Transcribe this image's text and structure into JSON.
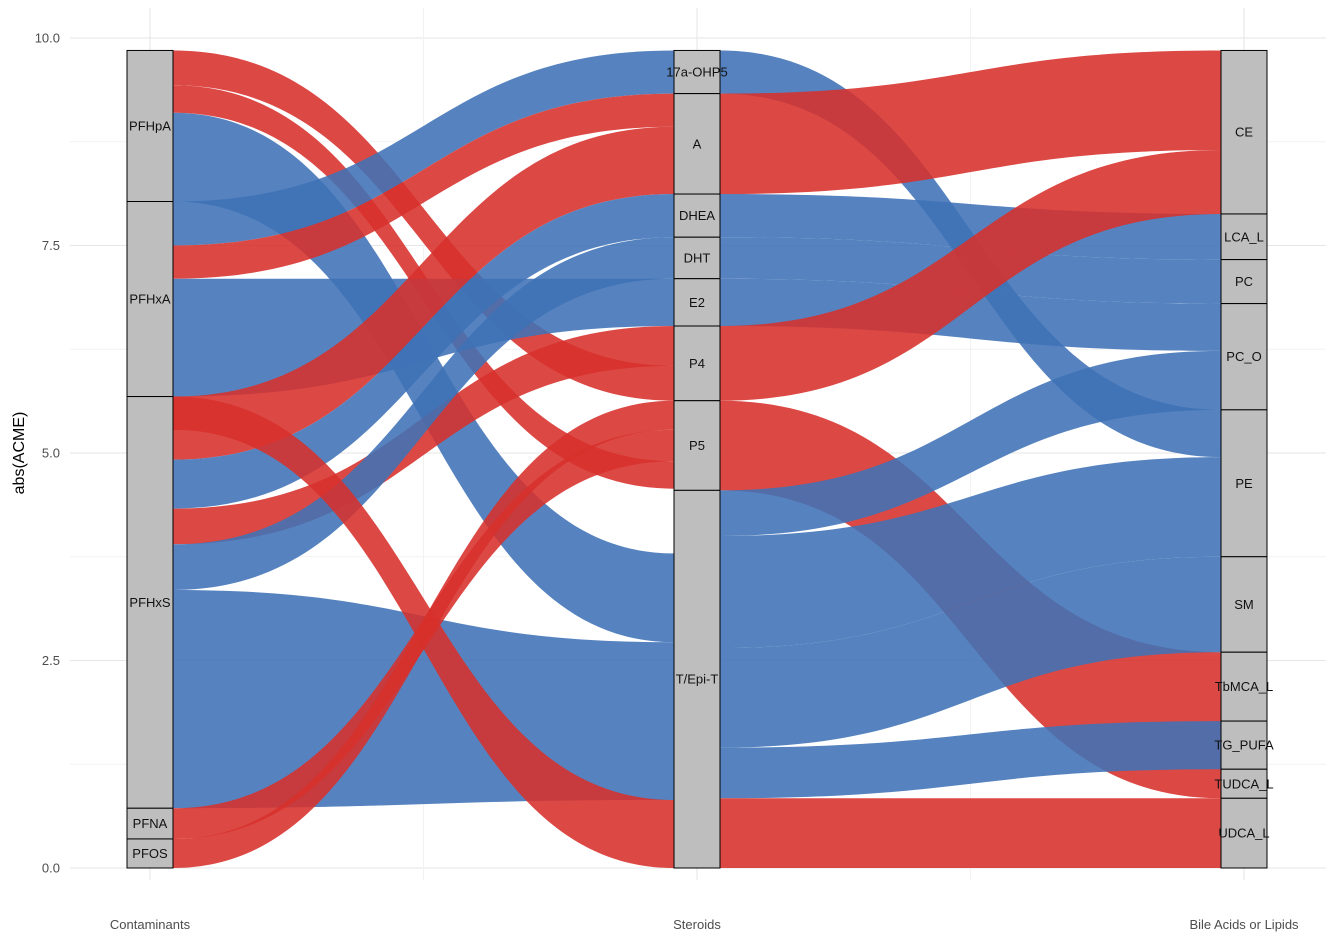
{
  "chart_data": {
    "type": "alluvial",
    "ylabel": "abs(ACME)",
    "ylim": [
      0,
      10
    ],
    "yticks": [
      "0.0",
      "2.5",
      "5.0",
      "7.5",
      "10.0"
    ],
    "ytick_values": [
      0,
      2.5,
      5,
      7.5,
      10
    ],
    "axes": [
      "Contaminants",
      "Steroids",
      "Bile Acids or Lipids"
    ],
    "colors": {
      "positive": "#d7302b",
      "negative": "#3f72b6",
      "node_fill": "#bebebe"
    },
    "nodes": {
      "Contaminants": [
        {
          "name": "PFHpA",
          "start": 8.03,
          "end": 9.85
        },
        {
          "name": "PFHxA",
          "start": 5.68,
          "end": 8.03
        },
        {
          "name": "PFHxS",
          "start": 0.72,
          "end": 5.68
        },
        {
          "name": "PFNA",
          "start": 0.35,
          "end": 0.72
        },
        {
          "name": "PFOS",
          "start": 0.0,
          "end": 0.35
        }
      ],
      "Steroids": [
        {
          "name": "17a-OHP5",
          "start": 9.33,
          "end": 9.85
        },
        {
          "name": "A",
          "start": 8.12,
          "end": 9.33
        },
        {
          "name": "DHEA",
          "start": 7.6,
          "end": 8.12
        },
        {
          "name": "DHT",
          "start": 7.1,
          "end": 7.6
        },
        {
          "name": "E2",
          "start": 6.53,
          "end": 7.1
        },
        {
          "name": "P4",
          "start": 5.63,
          "end": 6.53
        },
        {
          "name": "P5",
          "start": 4.55,
          "end": 5.63
        },
        {
          "name": "T/Epi-T",
          "start": 0.0,
          "end": 4.55
        }
      ],
      "Bile Acids or Lipids": [
        {
          "name": "CE",
          "start": 7.88,
          "end": 9.85
        },
        {
          "name": "LCA_L",
          "start": 7.33,
          "end": 7.88
        },
        {
          "name": "PC",
          "start": 6.8,
          "end": 7.33
        },
        {
          "name": "PC_O",
          "start": 5.52,
          "end": 6.8
        },
        {
          "name": "PE",
          "start": 3.75,
          "end": 5.52
        },
        {
          "name": "SM",
          "start": 2.6,
          "end": 3.75
        },
        {
          "name": "TbMCA_L",
          "start": 1.77,
          "end": 2.6
        },
        {
          "name": "TG_PUFA",
          "start": 1.19,
          "end": 1.77
        },
        {
          "name": "TUDCA_L",
          "start": 0.84,
          "end": 1.19
        },
        {
          "name": "UDCA_L",
          "start": 0.0,
          "end": 0.84
        }
      ]
    },
    "flows_left": [
      {
        "from": "PFHpA",
        "to": "P4",
        "sign": "positive",
        "l0": 9.43,
        "l1": 9.85,
        "r0": 5.63,
        "r1": 6.05
      },
      {
        "from": "PFHpA",
        "to": "P5",
        "sign": "positive",
        "l0": 9.1,
        "l1": 9.43,
        "r0": 4.57,
        "r1": 4.9
      },
      {
        "from": "PFHpA",
        "to": "T/Epi-T",
        "sign": "negative",
        "l0": 8.03,
        "l1": 9.1,
        "r0": 2.72,
        "r1": 3.79
      },
      {
        "from": "PFHxA",
        "to": "17a-OHP5",
        "sign": "negative",
        "l0": 7.5,
        "l1": 8.03,
        "r0": 9.33,
        "r1": 9.85
      },
      {
        "from": "PFHxA",
        "to": "A",
        "sign": "positive",
        "l0": 7.1,
        "l1": 7.5,
        "r0": 8.93,
        "r1": 9.33
      },
      {
        "from": "PFHxA",
        "to": "E2",
        "sign": "negative",
        "l0": 5.68,
        "l1": 7.1,
        "r0": 6.53,
        "r1": 7.1
      },
      {
        "from": "PFHxS",
        "to": "A",
        "sign": "positive",
        "l0": 4.92,
        "l1": 5.68,
        "r0": 8.12,
        "r1": 8.93
      },
      {
        "from": "PFHxS",
        "to": "DHEA",
        "sign": "negative",
        "l0": 4.33,
        "l1": 4.92,
        "r0": 7.6,
        "r1": 8.12
      },
      {
        "from": "PFHxS",
        "to": "P4",
        "sign": "positive",
        "l0": 3.9,
        "l1": 4.33,
        "r0": 6.05,
        "r1": 6.53
      },
      {
        "from": "PFHxS",
        "to": "DHT",
        "sign": "negative",
        "l0": 3.35,
        "l1": 3.9,
        "r0": 7.1,
        "r1": 7.6
      },
      {
        "from": "PFHxS",
        "to": "T/Epi-T",
        "sign": "negative",
        "l0": 0.72,
        "l1": 3.35,
        "r0": 0.82,
        "r1": 2.72
      },
      {
        "from": "PFNA",
        "to": "P5",
        "sign": "positive",
        "l0": 0.35,
        "l1": 0.72,
        "r0": 4.9,
        "r1": 5.28
      },
      {
        "from": "PFOS",
        "to": "P5",
        "sign": "positive",
        "l0": 0.0,
        "l1": 0.35,
        "r0": 5.28,
        "r1": 5.63
      },
      {
        "from": "PFHxS",
        "to": "T/Epi-T",
        "sign": "positive",
        "l0": 5.28,
        "l1": 5.68,
        "r0": 0.0,
        "r1": 0.82
      }
    ],
    "flows_right": [
      {
        "from": "17a-OHP5",
        "to": "PE",
        "sign": "negative",
        "l0": 9.33,
        "l1": 9.85,
        "r0": 4.95,
        "r1": 5.52
      },
      {
        "from": "A",
        "to": "CE",
        "sign": "positive",
        "l0": 8.12,
        "l1": 9.33,
        "r0": 8.65,
        "r1": 9.85
      },
      {
        "from": "DHEA",
        "to": "LCA_L",
        "sign": "negative",
        "l0": 7.6,
        "l1": 8.12,
        "r0": 7.33,
        "r1": 7.88
      },
      {
        "from": "DHT",
        "to": "PC",
        "sign": "negative",
        "l0": 7.1,
        "l1": 7.6,
        "r0": 6.8,
        "r1": 7.33
      },
      {
        "from": "E2",
        "to": "PC_O",
        "sign": "negative",
        "l0": 6.53,
        "l1": 7.1,
        "r0": 6.23,
        "r1": 6.8
      },
      {
        "from": "P4",
        "to": "CE",
        "sign": "positive",
        "l0": 5.63,
        "l1": 6.53,
        "r0": 7.88,
        "r1": 8.65
      },
      {
        "from": "P5",
        "to": "TbMCA_L",
        "sign": "positive",
        "l0": 4.55,
        "l1": 5.63,
        "r0": 0.84,
        "r1": 2.6
      },
      {
        "from": "T/Epi-T",
        "to": "PC_O",
        "sign": "negative",
        "l0": 4.0,
        "l1": 4.55,
        "r0": 5.52,
        "r1": 6.23
      },
      {
        "from": "T/Epi-T",
        "to": "PE",
        "sign": "negative",
        "l0": 2.65,
        "l1": 4.0,
        "r0": 3.75,
        "r1": 4.95
      },
      {
        "from": "T/Epi-T",
        "to": "SM",
        "sign": "negative",
        "l0": 1.45,
        "l1": 2.65,
        "r0": 2.6,
        "r1": 3.75
      },
      {
        "from": "T/Epi-T",
        "to": "TG_PUFA",
        "sign": "negative",
        "l0": 0.84,
        "l1": 1.45,
        "r0": 1.19,
        "r1": 1.77
      },
      {
        "from": "T/Epi-T",
        "to": "UDCA_L",
        "sign": "positive",
        "l0": 0.0,
        "l1": 0.84,
        "r0": 0.0,
        "r1": 0.84
      }
    ]
  }
}
